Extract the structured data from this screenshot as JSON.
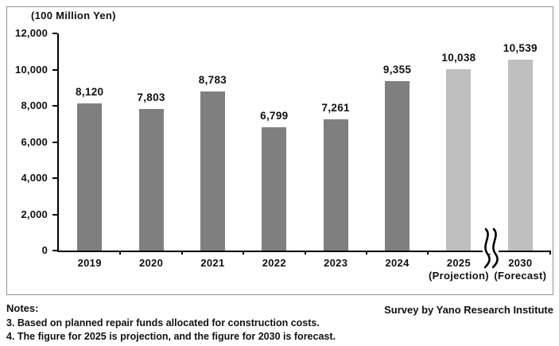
{
  "chart_data": {
    "type": "bar",
    "title": "",
    "unit_label": "(100 Million Yen)",
    "categories": [
      "2019",
      "2020",
      "2021",
      "2022",
      "2023",
      "2024",
      "2025",
      "2030"
    ],
    "category_sublabels": [
      "",
      "",
      "",
      "",
      "",
      "",
      "(Projection)",
      "(Forecast)"
    ],
    "values": [
      8120,
      7803,
      8783,
      6799,
      7261,
      9355,
      10038,
      10539
    ],
    "value_labels": [
      "8,120",
      "7,803",
      "8,783",
      "6,799",
      "7,261",
      "9,355",
      "10,038",
      "10,539"
    ],
    "bar_styles": [
      "actual",
      "actual",
      "actual",
      "actual",
      "actual",
      "actual",
      "projection",
      "forecast"
    ],
    "colors": {
      "actual": "#7f7f7f",
      "projection": "#bfbfbf",
      "forecast": "#bfbfbf"
    },
    "y_axis": {
      "min": 0,
      "max": 12000,
      "step": 2000,
      "tick_labels": [
        "12,000",
        "10,000",
        "8,000",
        "6,000",
        "4,000",
        "2,000",
        "0"
      ]
    },
    "xlabel": "",
    "ylabel": "",
    "grid": "off",
    "legend": "none",
    "axis_break_after_category": "2025"
  },
  "footer": {
    "notes_title": "Notes:",
    "note3": "3. Based on planned repair funds allocated for construction costs.",
    "note4": "4. The figure for 2025 is projection, and the figure for 2030 is forecast.",
    "survey": "Survey by Yano Research Institute"
  }
}
